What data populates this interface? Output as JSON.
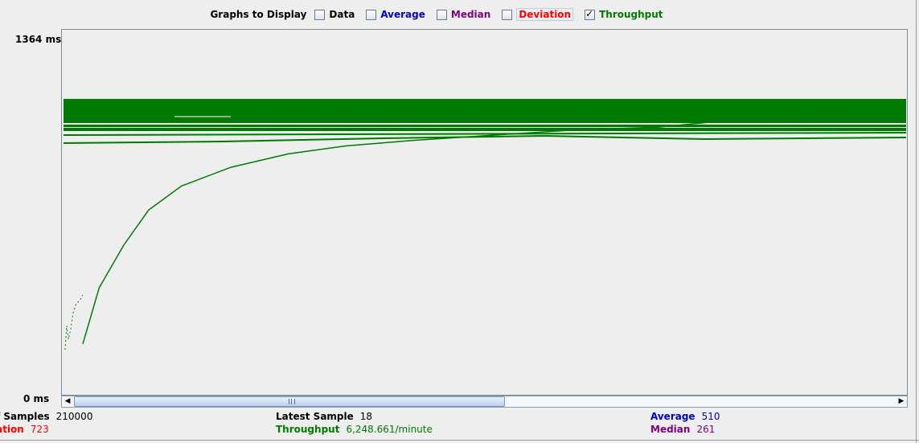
{
  "graphs_to_display": {
    "title": "Graphs to Display",
    "options": [
      {
        "label": "Data",
        "checked": false,
        "key": "data"
      },
      {
        "label": "Average",
        "checked": false,
        "key": "average"
      },
      {
        "label": "Median",
        "checked": false,
        "key": "median"
      },
      {
        "label": "Deviation",
        "checked": false,
        "key": "deviation"
      },
      {
        "label": "Throughput",
        "checked": true,
        "key": "throughput"
      }
    ]
  },
  "axis": {
    "y_max_label": "1364  ms",
    "y_min_label": "0  ms"
  },
  "colors": {
    "throughput": "#007a00",
    "average": "#0000cc",
    "median": "#800080",
    "deviation": "#ff0000"
  },
  "chart_data": {
    "type": "line",
    "ylim": [
      0,
      1364
    ],
    "series": [
      {
        "name": "Throughput",
        "x": [
          0,
          2,
          5,
          8,
          12,
          18,
          25,
          32,
          40,
          50,
          60,
          70,
          80,
          90,
          100
        ],
        "values": [
          190,
          400,
          560,
          690,
          780,
          850,
          900,
          930,
          950,
          970,
          990,
          1000,
          1030,
          1050,
          1070
        ]
      }
    ]
  },
  "stats": {
    "samples_label": "f Samples",
    "samples_value": "210000",
    "latest_label": "Latest Sample",
    "latest_value": "18",
    "average_label": "Average",
    "average_value": "510",
    "deviation_label": "iation",
    "deviation_value": "723",
    "throughput_label": "Throughput",
    "throughput_value": "6,248.661/minute",
    "median_label": "Median",
    "median_value": "261"
  }
}
